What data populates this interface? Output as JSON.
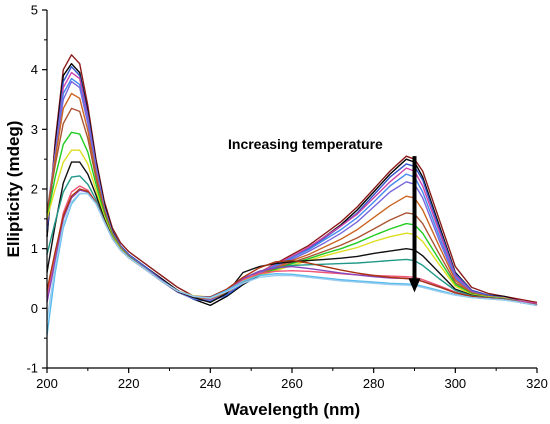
{
  "chart_data": {
    "type": "line",
    "title": "",
    "xlabel": "Wavelength (nm)",
    "ylabel": "Ellipticity (mdeg)",
    "xlim": [
      200,
      320
    ],
    "ylim": [
      -1,
      5
    ],
    "xticks": [
      "200",
      "220",
      "240",
      "260",
      "280",
      "300",
      "320"
    ],
    "yticks": [
      "-1",
      "0",
      "1",
      "2",
      "3",
      "4",
      "5"
    ],
    "grid": false,
    "legend": "none",
    "annotation": {
      "text": "Increasing temperature",
      "arrow_from": {
        "x": 290,
        "y": 2.55
      },
      "arrow_to": {
        "x": 290,
        "y": 0.3
      }
    },
    "x": [
      200,
      202,
      204,
      206,
      208,
      210,
      212,
      214,
      216,
      218,
      220,
      224,
      228,
      232,
      236,
      240,
      244,
      248,
      252,
      256,
      260,
      264,
      268,
      272,
      276,
      280,
      284,
      288,
      290,
      292,
      296,
      300,
      304,
      308,
      312,
      316,
      320
    ],
    "series": [
      {
        "color": "#8b1a1a",
        "values": [
          1.2,
          2.8,
          4.0,
          4.25,
          4.1,
          3.4,
          2.5,
          1.8,
          1.35,
          1.1,
          0.95,
          0.75,
          0.55,
          0.35,
          0.2,
          0.18,
          0.3,
          0.45,
          0.6,
          0.75,
          0.9,
          1.05,
          1.25,
          1.45,
          1.7,
          2.0,
          2.3,
          2.55,
          2.5,
          2.3,
          1.5,
          0.7,
          0.35,
          0.25,
          0.2,
          0.15,
          0.1
        ]
      },
      {
        "color": "#000000",
        "values": [
          1.2,
          2.7,
          3.9,
          4.1,
          3.95,
          3.3,
          2.45,
          1.75,
          1.3,
          1.05,
          0.9,
          0.7,
          0.5,
          0.3,
          0.15,
          0.05,
          0.2,
          0.4,
          0.55,
          0.7,
          0.85,
          1.0,
          1.2,
          1.4,
          1.65,
          1.95,
          2.25,
          2.5,
          2.45,
          2.2,
          1.4,
          0.6,
          0.3,
          0.22,
          0.2,
          0.12,
          0.05
        ]
      },
      {
        "color": "#3355cc",
        "values": [
          1.3,
          2.6,
          3.8,
          4.05,
          3.9,
          3.25,
          2.4,
          1.7,
          1.28,
          1.05,
          0.9,
          0.7,
          0.48,
          0.28,
          0.15,
          0.12,
          0.22,
          0.42,
          0.57,
          0.72,
          0.85,
          1.0,
          1.18,
          1.38,
          1.6,
          1.9,
          2.2,
          2.42,
          2.38,
          2.15,
          1.35,
          0.58,
          0.3,
          0.22,
          0.18,
          0.1,
          0.05
        ]
      },
      {
        "color": "#cc44aa",
        "values": [
          1.4,
          2.6,
          3.7,
          3.95,
          3.85,
          3.2,
          2.38,
          1.7,
          1.27,
          1.03,
          0.88,
          0.68,
          0.47,
          0.28,
          0.16,
          0.14,
          0.25,
          0.45,
          0.6,
          0.74,
          0.87,
          1.02,
          1.2,
          1.38,
          1.58,
          1.85,
          2.12,
          2.35,
          2.3,
          2.05,
          1.3,
          0.55,
          0.28,
          0.2,
          0.18,
          0.12,
          0.08
        ]
      },
      {
        "color": "#4488ee",
        "values": [
          1.5,
          2.6,
          3.6,
          3.85,
          3.75,
          3.15,
          2.35,
          1.7,
          1.27,
          1.03,
          0.88,
          0.68,
          0.46,
          0.27,
          0.16,
          0.13,
          0.24,
          0.44,
          0.58,
          0.72,
          0.85,
          0.98,
          1.15,
          1.32,
          1.52,
          1.78,
          2.05,
          2.25,
          2.2,
          1.95,
          1.22,
          0.52,
          0.27,
          0.2,
          0.17,
          0.1,
          0.06
        ]
      },
      {
        "color": "#7766dd",
        "values": [
          1.6,
          2.6,
          3.5,
          3.8,
          3.7,
          3.1,
          2.32,
          1.68,
          1.26,
          1.02,
          0.87,
          0.67,
          0.46,
          0.27,
          0.17,
          0.14,
          0.25,
          0.44,
          0.58,
          0.7,
          0.82,
          0.95,
          1.1,
          1.26,
          1.45,
          1.7,
          1.95,
          2.12,
          2.08,
          1.85,
          1.15,
          0.5,
          0.27,
          0.2,
          0.17,
          0.1,
          0.06
        ]
      },
      {
        "color": "#cc6622",
        "values": [
          1.6,
          2.5,
          3.35,
          3.6,
          3.52,
          2.98,
          2.25,
          1.65,
          1.25,
          1.02,
          0.87,
          0.67,
          0.46,
          0.28,
          0.18,
          0.16,
          0.26,
          0.44,
          0.57,
          0.68,
          0.8,
          0.9,
          1.03,
          1.16,
          1.32,
          1.52,
          1.72,
          1.88,
          1.85,
          1.65,
          1.05,
          0.47,
          0.26,
          0.2,
          0.17,
          0.1,
          0.06
        ]
      },
      {
        "color": "#aa5533",
        "values": [
          1.6,
          2.4,
          3.1,
          3.35,
          3.3,
          2.85,
          2.18,
          1.62,
          1.24,
          1.01,
          0.87,
          0.67,
          0.46,
          0.28,
          0.19,
          0.17,
          0.28,
          0.45,
          0.56,
          0.66,
          0.77,
          0.86,
          0.96,
          1.06,
          1.18,
          1.33,
          1.48,
          1.6,
          1.58,
          1.42,
          0.92,
          0.43,
          0.25,
          0.2,
          0.17,
          0.1,
          0.06
        ]
      },
      {
        "color": "#22cc22",
        "values": [
          1.5,
          2.2,
          2.75,
          2.95,
          2.92,
          2.62,
          2.08,
          1.58,
          1.22,
          1.0,
          0.86,
          0.66,
          0.46,
          0.29,
          0.2,
          0.18,
          0.3,
          0.47,
          0.56,
          0.65,
          0.75,
          0.83,
          0.92,
          1.0,
          1.1,
          1.22,
          1.33,
          1.42,
          1.4,
          1.26,
          0.82,
          0.4,
          0.24,
          0.19,
          0.17,
          0.1,
          0.06
        ]
      },
      {
        "color": "#dddd22",
        "values": [
          1.5,
          2.0,
          2.45,
          2.65,
          2.65,
          2.42,
          1.98,
          1.54,
          1.2,
          0.99,
          0.85,
          0.66,
          0.46,
          0.29,
          0.21,
          0.19,
          0.31,
          0.47,
          0.55,
          0.63,
          0.72,
          0.8,
          0.88,
          0.95,
          1.02,
          1.12,
          1.2,
          1.26,
          1.24,
          1.12,
          0.74,
          0.37,
          0.23,
          0.19,
          0.17,
          0.1,
          0.06
        ]
      },
      {
        "color": "#111111",
        "values": [
          0.6,
          1.4,
          2.1,
          2.45,
          2.45,
          2.25,
          1.9,
          1.5,
          1.18,
          0.98,
          0.85,
          0.66,
          0.46,
          0.28,
          0.18,
          0.1,
          0.25,
          0.6,
          0.7,
          0.75,
          0.78,
          0.8,
          0.82,
          0.84,
          0.87,
          0.92,
          0.96,
          1.0,
          0.98,
          0.88,
          0.6,
          0.32,
          0.22,
          0.18,
          0.16,
          0.1,
          0.06
        ]
      },
      {
        "color": "#229988",
        "values": [
          0.9,
          1.45,
          1.95,
          2.2,
          2.22,
          2.08,
          1.82,
          1.47,
          1.17,
          0.98,
          0.85,
          0.66,
          0.46,
          0.29,
          0.2,
          0.18,
          0.3,
          0.5,
          0.62,
          0.68,
          0.72,
          0.73,
          0.74,
          0.75,
          0.76,
          0.78,
          0.8,
          0.82,
          0.8,
          0.72,
          0.5,
          0.3,
          0.21,
          0.18,
          0.16,
          0.1,
          0.06
        ]
      },
      {
        "color": "#ee5577",
        "values": [
          0.2,
          0.9,
          1.6,
          1.95,
          2.05,
          1.98,
          1.78,
          1.46,
          1.17,
          0.98,
          0.85,
          0.66,
          0.46,
          0.29,
          0.2,
          0.19,
          0.31,
          0.48,
          0.58,
          0.62,
          0.63,
          0.62,
          0.6,
          0.58,
          0.56,
          0.55,
          0.54,
          0.53,
          0.52,
          0.48,
          0.38,
          0.27,
          0.2,
          0.17,
          0.15,
          0.1,
          0.06
        ]
      },
      {
        "color": "#8844bb",
        "values": [
          0.1,
          0.8,
          1.5,
          1.85,
          1.98,
          1.95,
          1.77,
          1.46,
          1.17,
          0.98,
          0.85,
          0.66,
          0.46,
          0.29,
          0.2,
          0.19,
          0.32,
          0.5,
          0.62,
          0.68,
          0.7,
          0.67,
          0.63,
          0.59,
          0.56,
          0.53,
          0.51,
          0.5,
          0.49,
          0.45,
          0.36,
          0.26,
          0.2,
          0.17,
          0.15,
          0.1,
          0.06
        ]
      },
      {
        "color": "#aa3311",
        "values": [
          0.3,
          0.95,
          1.55,
          1.88,
          2.0,
          1.96,
          1.77,
          1.46,
          1.17,
          0.98,
          0.85,
          0.66,
          0.46,
          0.29,
          0.2,
          0.19,
          0.32,
          0.52,
          0.68,
          0.78,
          0.8,
          0.76,
          0.7,
          0.64,
          0.59,
          0.55,
          0.52,
          0.5,
          0.49,
          0.45,
          0.36,
          0.26,
          0.2,
          0.17,
          0.15,
          0.1,
          0.06
        ]
      },
      {
        "color": "#55bbee",
        "values": [
          -0.45,
          0.6,
          1.35,
          1.75,
          1.92,
          1.93,
          1.76,
          1.45,
          1.17,
          0.98,
          0.85,
          0.66,
          0.46,
          0.29,
          0.2,
          0.18,
          0.3,
          0.45,
          0.55,
          0.58,
          0.57,
          0.54,
          0.51,
          0.48,
          0.46,
          0.44,
          0.42,
          0.41,
          0.4,
          0.37,
          0.3,
          0.23,
          0.18,
          0.16,
          0.14,
          0.1,
          0.05
        ]
      },
      {
        "color": "#99ccee",
        "values": [
          -0.2,
          0.7,
          1.4,
          1.78,
          1.93,
          1.92,
          1.75,
          1.45,
          1.17,
          0.98,
          0.85,
          0.66,
          0.46,
          0.29,
          0.2,
          0.17,
          0.28,
          0.42,
          0.52,
          0.55,
          0.55,
          0.52,
          0.49,
          0.46,
          0.44,
          0.42,
          0.4,
          0.39,
          0.38,
          0.35,
          0.28,
          0.22,
          0.18,
          0.16,
          0.14,
          0.1,
          0.05
        ]
      }
    ]
  }
}
